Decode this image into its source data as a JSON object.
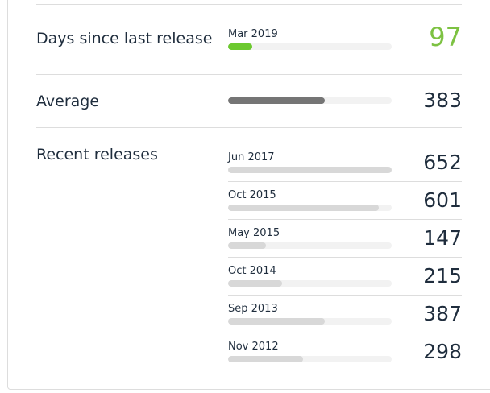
{
  "last_release": {
    "title": "Days since last release",
    "date": "Mar 2019",
    "days": "97",
    "fraction": 0.15,
    "color": "#6cc92f"
  },
  "average": {
    "title": "Average",
    "days": "383",
    "fraction": 0.59,
    "color": "#757575"
  },
  "recent": {
    "title": "Recent releases",
    "items": [
      {
        "date": "Jun 2017",
        "days": "652",
        "fraction": 1.0
      },
      {
        "date": "Oct 2015",
        "days": "601",
        "fraction": 0.92
      },
      {
        "date": "May 2015",
        "days": "147",
        "fraction": 0.23
      },
      {
        "date": "Oct 2014",
        "days": "215",
        "fraction": 0.33
      },
      {
        "date": "Sep 2013",
        "days": "387",
        "fraction": 0.59
      },
      {
        "date": "Nov 2012",
        "days": "298",
        "fraction": 0.46
      }
    ]
  }
}
